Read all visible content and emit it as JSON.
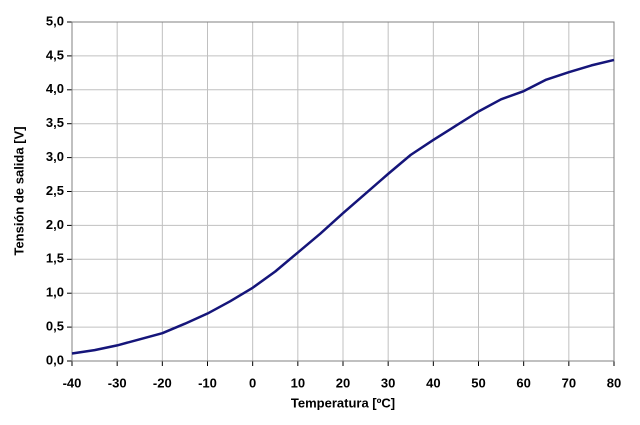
{
  "chart_data": {
    "type": "line",
    "x_label": "Temperatura [ºC]",
    "y_label": "Tensión de salida [V]",
    "x": [
      -40,
      -35,
      -30,
      -25,
      -20,
      -15,
      -10,
      -5,
      0,
      5,
      10,
      15,
      20,
      25,
      30,
      35,
      40,
      45,
      50,
      55,
      60,
      65,
      70,
      75,
      80
    ],
    "values": [
      0.11,
      0.16,
      0.23,
      0.32,
      0.41,
      0.55,
      0.7,
      0.88,
      1.08,
      1.32,
      1.6,
      1.88,
      2.18,
      2.47,
      2.76,
      3.04,
      3.26,
      3.47,
      3.68,
      3.86,
      3.98,
      4.15,
      4.26,
      4.36,
      4.44
    ],
    "color": "#15157a",
    "xlim": [
      -40,
      80
    ],
    "xticks": [
      -40,
      -30,
      -20,
      -10,
      0,
      10,
      20,
      30,
      40,
      50,
      60,
      70,
      80
    ],
    "ylim": [
      0,
      5
    ],
    "yticks": [
      {
        "value": 0,
        "label": "0,0"
      },
      {
        "value": 0.5,
        "label": "0,5"
      },
      {
        "value": 1,
        "label": "1,0"
      },
      {
        "value": 1.5,
        "label": "1,5"
      },
      {
        "value": 2,
        "label": "2,0"
      },
      {
        "value": 2.5,
        "label": "2,5"
      },
      {
        "value": 3,
        "label": "3,0"
      },
      {
        "value": 3.5,
        "label": "3,5"
      },
      {
        "value": 4,
        "label": "4,0"
      },
      {
        "value": 4.5,
        "label": "4,5"
      },
      {
        "value": 5,
        "label": "5,0"
      }
    ],
    "grid": true
  }
}
